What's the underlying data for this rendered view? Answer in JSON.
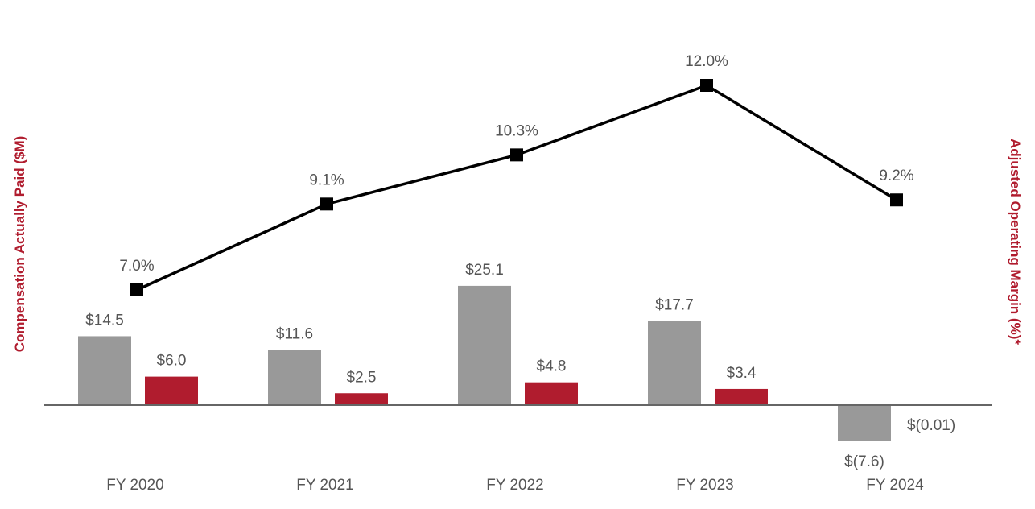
{
  "chart_data": {
    "type": "bar+line",
    "categories": [
      "FY 2020",
      "FY 2021",
      "FY 2022",
      "FY 2023",
      "FY 2024"
    ],
    "bar_series": [
      {
        "name": "series-1",
        "color": "#999999",
        "values": [
          14.5,
          11.6,
          25.1,
          17.7,
          -7.6
        ],
        "labels": [
          "$14.5",
          "$11.6",
          "$25.1",
          "$17.7",
          "$(7.6)"
        ]
      },
      {
        "name": "series-2",
        "color": "#B01C2E",
        "values": [
          6.0,
          2.5,
          4.8,
          3.4,
          -0.01
        ],
        "labels": [
          "$6.0",
          "$2.5",
          "$4.8",
          "$3.4",
          "$(0.01)"
        ]
      }
    ],
    "line_series": {
      "name": "Adjusted Operating Margin",
      "color": "#000000",
      "values": [
        7.0,
        9.1,
        10.3,
        12.0,
        9.2
      ],
      "labels": [
        "7.0%",
        "9.1%",
        "10.3%",
        "12.0%",
        "9.2%"
      ]
    },
    "y_left_label": "Compensation Actually Paid ($M)",
    "y_right_label": "Adjusted Operating Margin (%)*",
    "axis_title_color": "#B01C2E",
    "baseline_color": "#666666"
  }
}
